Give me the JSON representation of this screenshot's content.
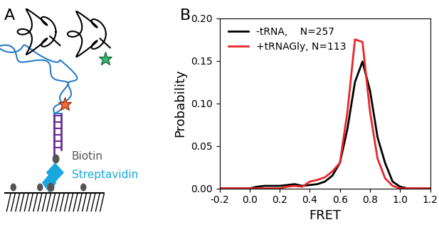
{
  "diagram": {
    "panel_label": "A",
    "labels": {
      "biotin": "Biotin",
      "streptavidin": "Streptavidin"
    }
  },
  "chart_data": {
    "type": "line",
    "panel_label": "B",
    "x_label": "FRET",
    "y_label": "Probability",
    "x": [
      -0.2,
      -0.15,
      -0.1,
      -0.05,
      0.0,
      0.05,
      0.1,
      0.15,
      0.2,
      0.25,
      0.3,
      0.35,
      0.4,
      0.45,
      0.5,
      0.55,
      0.6,
      0.65,
      0.7,
      0.75,
      0.8,
      0.85,
      0.9,
      0.95,
      1.0,
      1.05,
      1.1,
      1.15,
      1.2
    ],
    "series": [
      {
        "name": "-tRNA,    N=257",
        "color": "#000000",
        "values": [
          0,
          0,
          0,
          0,
          0,
          0.002,
          0.003,
          0.003,
          0.003,
          0.004,
          0.005,
          0.003,
          0.004,
          0.005,
          0.008,
          0.015,
          0.03,
          0.07,
          0.125,
          0.149,
          0.115,
          0.06,
          0.03,
          0.008,
          0.002,
          0,
          0,
          0,
          0
        ]
      },
      {
        "name": "+tRNAGly, N=113",
        "color": "#e8262a",
        "values": [
          0,
          0,
          0,
          0,
          0,
          0,
          0,
          0,
          0,
          0.002,
          0.003,
          0.002,
          0.008,
          0.01,
          0.013,
          0.02,
          0.03,
          0.09,
          0.175,
          0.172,
          0.09,
          0.035,
          0.012,
          0.003,
          0,
          0,
          0,
          0,
          0
        ]
      }
    ],
    "xlim": [
      -0.2,
      1.2
    ],
    "xticks": [
      {
        "value": -0.2,
        "label": "-0.2"
      },
      {
        "value": 0.0,
        "label": "0.0"
      },
      {
        "value": 0.2,
        "label": "0.2"
      },
      {
        "value": 0.4,
        "label": "0.4"
      },
      {
        "value": 0.6,
        "label": "0.6"
      },
      {
        "value": 0.8,
        "label": "0.8"
      },
      {
        "value": 1.0,
        "label": "1.0"
      },
      {
        "value": 1.2,
        "label": "1.2"
      }
    ],
    "ylim": [
      0,
      0.2
    ],
    "yticks": [
      {
        "value": 0.0,
        "label": "0.00"
      },
      {
        "value": 0.05,
        "label": "0.05"
      },
      {
        "value": 0.1,
        "label": "0.10"
      },
      {
        "value": 0.15,
        "label": "0.15"
      },
      {
        "value": 0.2,
        "label": "0.20"
      }
    ],
    "legend": "upper left",
    "grid": false
  }
}
